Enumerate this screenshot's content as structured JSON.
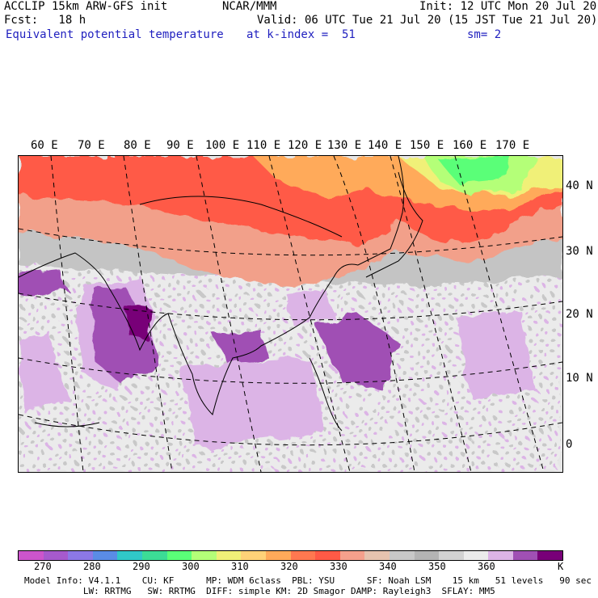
{
  "header": {
    "model": "ACCLIP 15km ARW-GFS init",
    "org": "NCAR/MMM",
    "init": "Init: 12 UTC Mon 20 Jul 20",
    "fcst": "Fcst:   18 h",
    "valid": "Valid: 06 UTC Tue 21 Jul 20 (15 JST Tue 21 Jul 20)",
    "field": "Equivalent potential temperature",
    "level": "at k-index =  51",
    "smooth": "sm= 2"
  },
  "map": {
    "lon_labels": [
      "60 E",
      "70 E",
      "80 E",
      "90 E",
      "100 E",
      "110 E",
      "120 E",
      "130 E",
      "140 E",
      "150 E",
      "160 E",
      "170 E"
    ],
    "lat_labels": [
      "40 N",
      "30 N",
      "20 N",
      "10 N",
      "0"
    ]
  },
  "colorbar": {
    "colors": [
      "#cc55cc",
      "#a65acd",
      "#8c78e6",
      "#5a8ce6",
      "#30c8c8",
      "#3cdc96",
      "#5aff78",
      "#b4ff78",
      "#f0f078",
      "#ffd278",
      "#ffaa5a",
      "#ff7850",
      "#ff5a46",
      "#f5a08c",
      "#e6c3af",
      "#c8c8c8",
      "#b4b4b4",
      "#d2d2d2",
      "#ebebeb",
      "#dcb4e6",
      "#a050b4",
      "#780078"
    ],
    "ticks": [
      "270",
      "280",
      "290",
      "300",
      "310",
      "320",
      "330",
      "340",
      "350",
      "360",
      "K"
    ]
  },
  "footer": {
    "line1": "Model Info: V4.1.1    CU: KF      MP: WDM 6class  PBL: YSU      SF: Noah LSM    15 km   51 levels   90 sec",
    "line2": "           LW: RRTMG   SW: RRTMG  DIFF: simple KM: 2D Smagor DAMP: Rayleigh3  SFLAY: MM5"
  }
}
